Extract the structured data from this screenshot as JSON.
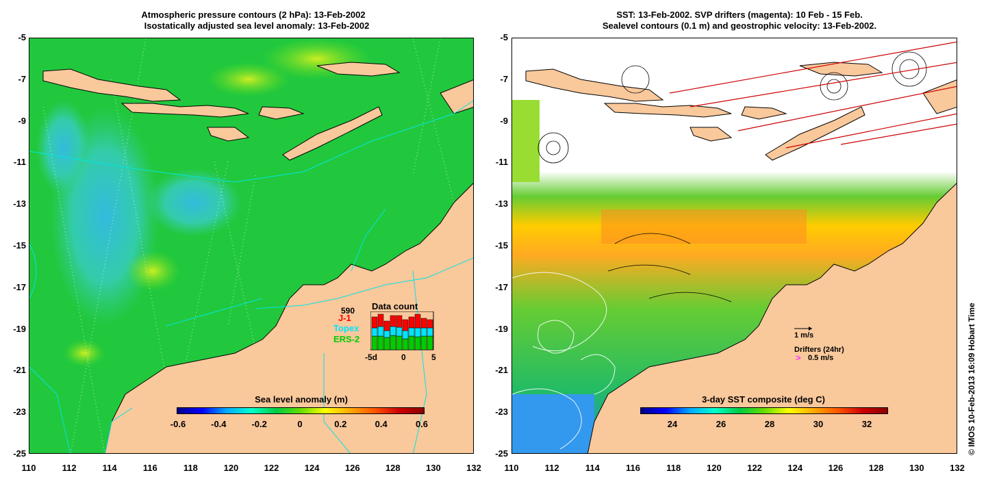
{
  "left_panel": {
    "title_line1": "Atmospheric pressure contours (2 hPa): 13-Feb-2002",
    "title_line2": "Isostatically adjusted sea level anomaly: 13-Feb-2002",
    "colorbar_title": "Sea level anomaly (m)",
    "colorbar_ticks": [
      "-0.6",
      "-0.4",
      "-0.2",
      "0",
      "0.2",
      "0.4",
      "0.6"
    ],
    "data_count": {
      "title": "Data count",
      "total": "590",
      "satellites": [
        "J-1",
        "Topex",
        "ERS-2"
      ],
      "satellite_colors": [
        "#ff0000",
        "#00e5ff",
        "#00cc00"
      ],
      "axis_ticks": [
        "-5d",
        "0",
        "5"
      ]
    }
  },
  "right_panel": {
    "title_line1": "SST: 13-Feb-2002. SVP drifters (magenta): 10 Feb - 15 Feb.",
    "title_line2": "Sealevel contours (0.1 m) and geostrophic velocity: 13-Feb-2002.",
    "colorbar_title": "3-day SST composite (deg C)",
    "colorbar_ticks": [
      "24",
      "26",
      "28",
      "30",
      "32"
    ],
    "velocity_scale_label": "1 m/s",
    "drifters_label": "Drifters (24hr)",
    "drifter_scale_label": "0.5 m/s"
  },
  "y_ticks": [
    "-5",
    "-7",
    "-9",
    "-11",
    "-13",
    "-15",
    "-17",
    "-19",
    "-21",
    "-23",
    "-25"
  ],
  "x_ticks": [
    "110",
    "112",
    "114",
    "116",
    "118",
    "120",
    "122",
    "124",
    "126",
    "128",
    "130",
    "132"
  ],
  "copyright": "© IMOS 10-Feb-2013 16:09 Hobart Time",
  "colors": {
    "land": "#f9c89b",
    "ocean_green": "#22cc22",
    "contour": "#00e5e5",
    "drifter": "#ff33ff"
  }
}
